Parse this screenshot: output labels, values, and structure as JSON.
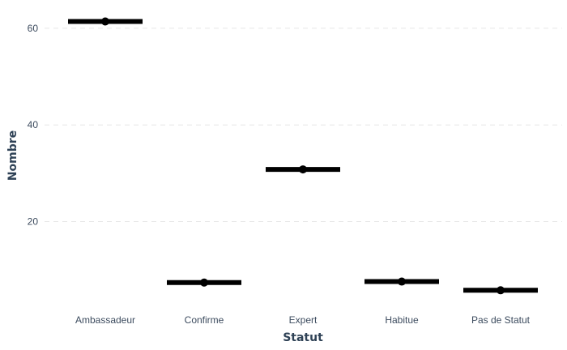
{
  "chart_data": {
    "type": "scatter",
    "title": "",
    "xlabel": "Statut",
    "ylabel": "Nombre",
    "categories": [
      "Ambassadeur",
      "Confirme",
      "Expert",
      "Habitue",
      "Pas de Statut"
    ],
    "values": [
      61.4,
      7.4,
      30.8,
      7.6,
      5.8
    ],
    "ylim": [
      3,
      65
    ],
    "yticks": [
      20,
      40,
      60
    ],
    "grid": true,
    "legend": "none",
    "colors": {
      "point": "#000000",
      "bar": "#000000",
      "grid": "#e6e6e6",
      "text": "#3c4b5e"
    }
  }
}
